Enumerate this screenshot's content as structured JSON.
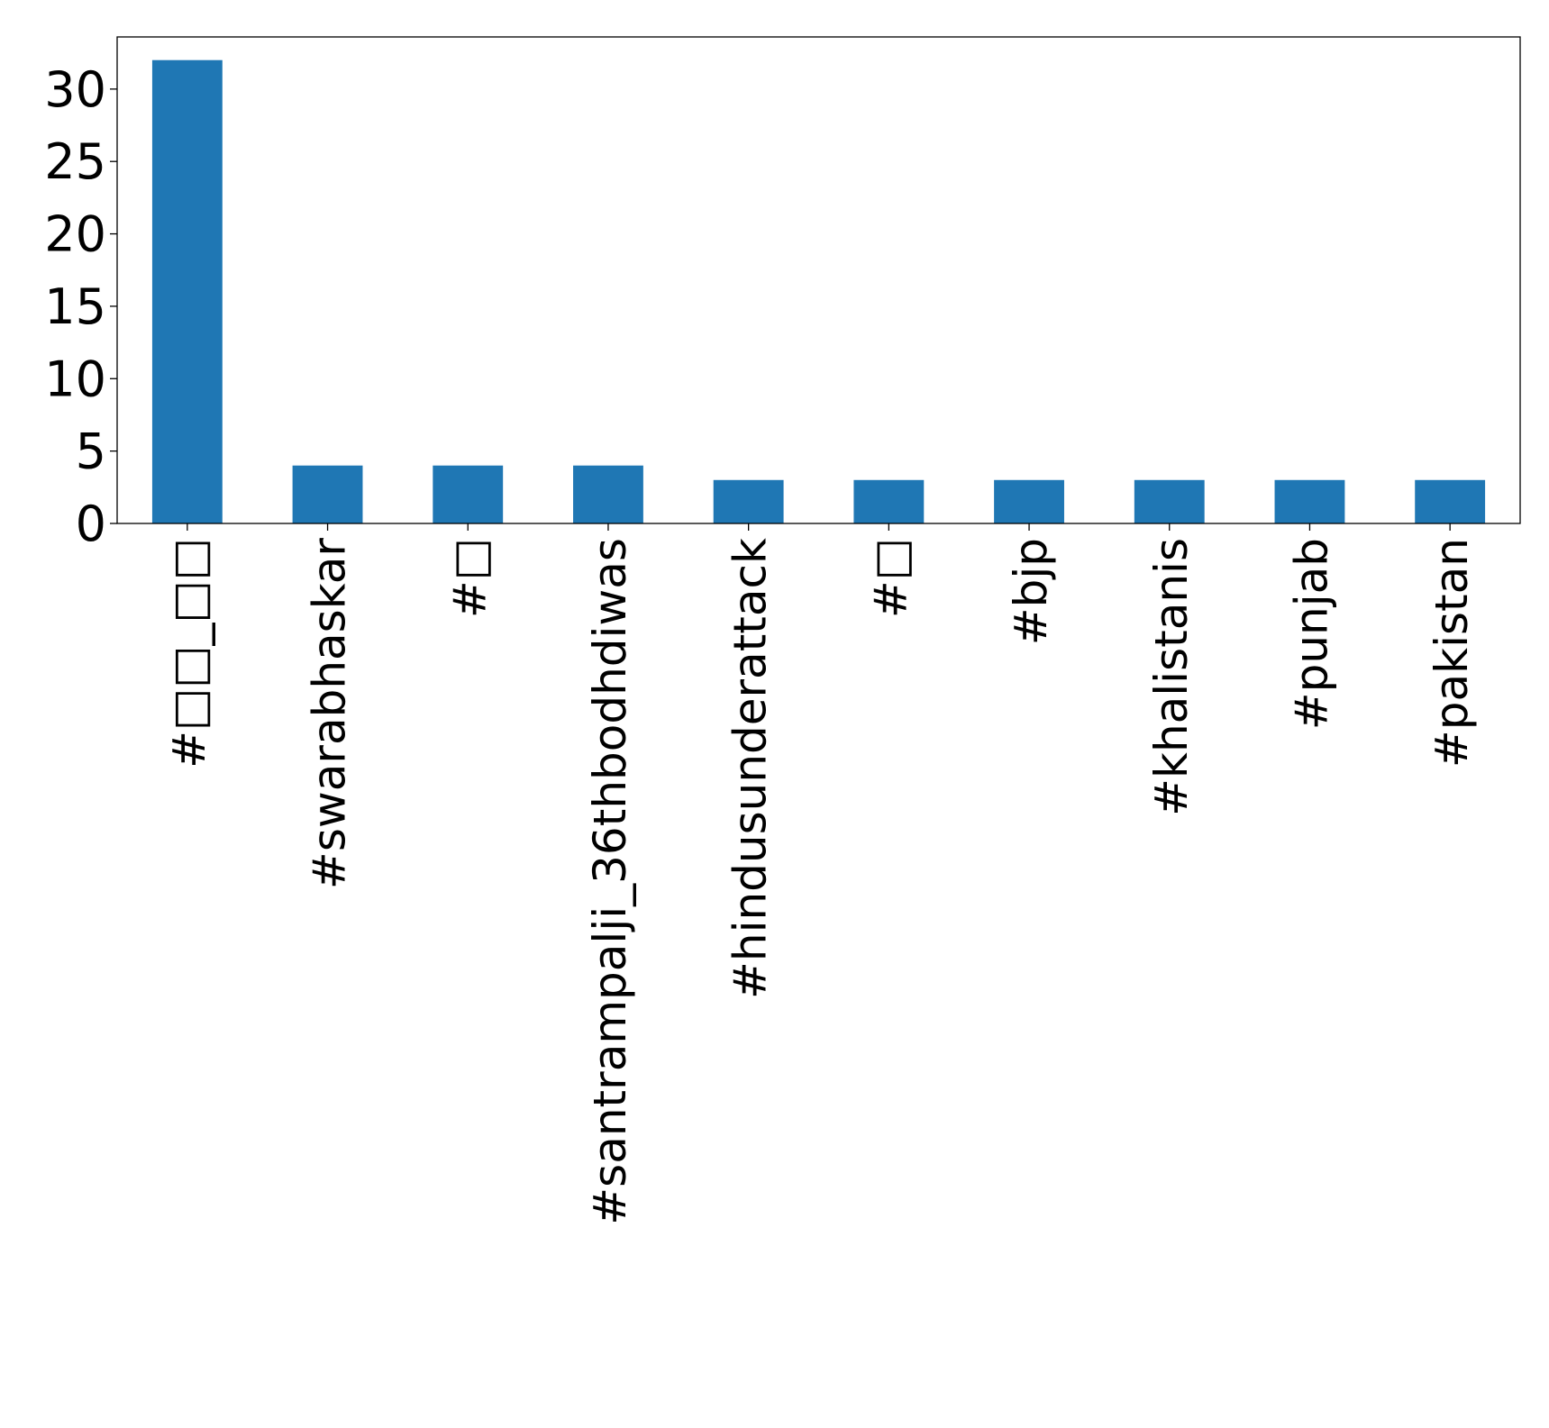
{
  "chart_data": {
    "type": "bar",
    "title": "",
    "xlabel": "",
    "ylabel": "",
    "categories": [
      "#□□_□□",
      "#swarabhaskar",
      "#□",
      "#santrampalji_36thbodhdiwas",
      "#hindusunderattack",
      "#□",
      "#bjp",
      "#khalistanis",
      "#punjab",
      "#pakistan"
    ],
    "values": [
      32,
      4,
      4,
      4,
      3,
      3,
      3,
      3,
      3,
      3
    ],
    "ylim": [
      0,
      33.6
    ],
    "yticks": [
      "0",
      "5",
      "10",
      "15",
      "20",
      "25",
      "30"
    ],
    "grid": false,
    "legend": "none",
    "colors": {
      "bar": "#1f77b4",
      "axis": "#000000",
      "background": "#ffffff"
    }
  }
}
